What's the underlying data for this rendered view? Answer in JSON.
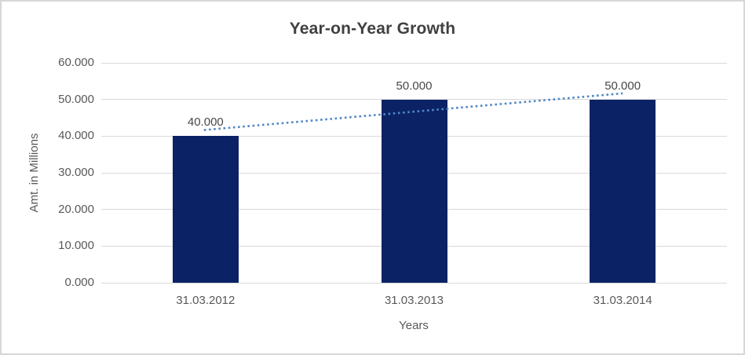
{
  "chart_data": {
    "type": "bar",
    "title": "Year-on-Year Growth",
    "xlabel": "Years",
    "ylabel": "Amt. in Millions",
    "categories": [
      "31.03.2012",
      "31.03.2013",
      "31.03.2014"
    ],
    "values": [
      40000,
      50000,
      50000
    ],
    "bar_labels": [
      "40.000",
      "50.000",
      "50.000"
    ],
    "y_ticks": [
      {
        "value": 0,
        "label": "0.000"
      },
      {
        "value": 10000,
        "label": "10.000"
      },
      {
        "value": 20000,
        "label": "20.000"
      },
      {
        "value": 30000,
        "label": "30.000"
      },
      {
        "value": 40000,
        "label": "40.000"
      },
      {
        "value": 50000,
        "label": "50.000"
      },
      {
        "value": 60000,
        "label": "60.000"
      }
    ],
    "ylim": [
      0,
      60000
    ],
    "grid": true,
    "legend": false,
    "bar_color": "#0b2265",
    "gridline_color": "#d9d9d9",
    "axis_text_color": "#595959",
    "data_label_color": "#474747",
    "title_color": "#404040",
    "trendline": {
      "type": "linear",
      "style": "dotted",
      "color": "#4f87c7",
      "start_value": 41667,
      "end_value": 51667
    }
  }
}
